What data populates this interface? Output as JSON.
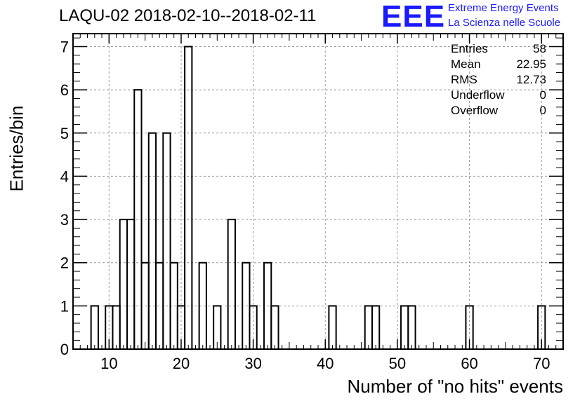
{
  "title": "LAQU-02 2018-02-10--2018-02-11",
  "logo": {
    "mark": "EEE",
    "line1": "Extreme Energy Events",
    "line2": "La Scienza nelle Scuole",
    "color": "#1a1aff"
  },
  "stats": [
    {
      "label": "Entries",
      "value": "58"
    },
    {
      "label": "Mean",
      "value": "22.95"
    },
    {
      "label": "RMS",
      "value": "12.73"
    },
    {
      "label": "Underflow",
      "value": "0"
    },
    {
      "label": "Overflow",
      "value": "0"
    }
  ],
  "chart_data": {
    "type": "bar",
    "style": "step-histogram",
    "xlabel": "Number of \"no hits\" events",
    "ylabel": "Entries/bin",
    "xlim": [
      5,
      73
    ],
    "ylim": [
      0,
      7.3
    ],
    "bin_width": 1,
    "grid": true,
    "xticks": [
      10,
      20,
      30,
      40,
      50,
      60,
      70
    ],
    "yticks": [
      0,
      1,
      2,
      3,
      4,
      5,
      6,
      7
    ],
    "bins": [
      {
        "x": 8,
        "value": 1
      },
      {
        "x": 10,
        "value": 1
      },
      {
        "x": 11,
        "value": 1
      },
      {
        "x": 12,
        "value": 3
      },
      {
        "x": 13,
        "value": 3
      },
      {
        "x": 14,
        "value": 6
      },
      {
        "x": 15,
        "value": 2
      },
      {
        "x": 16,
        "value": 5
      },
      {
        "x": 17,
        "value": 2
      },
      {
        "x": 18,
        "value": 5
      },
      {
        "x": 19,
        "value": 2
      },
      {
        "x": 20,
        "value": 1
      },
      {
        "x": 21,
        "value": 7
      },
      {
        "x": 23,
        "value": 2
      },
      {
        "x": 25,
        "value": 1
      },
      {
        "x": 27,
        "value": 3
      },
      {
        "x": 29,
        "value": 2
      },
      {
        "x": 30,
        "value": 1
      },
      {
        "x": 32,
        "value": 2
      },
      {
        "x": 33,
        "value": 1
      },
      {
        "x": 41,
        "value": 1
      },
      {
        "x": 46,
        "value": 1
      },
      {
        "x": 47,
        "value": 1
      },
      {
        "x": 51,
        "value": 1
      },
      {
        "x": 52,
        "value": 1
      },
      {
        "x": 60,
        "value": 1
      },
      {
        "x": 70,
        "value": 1
      }
    ]
  }
}
